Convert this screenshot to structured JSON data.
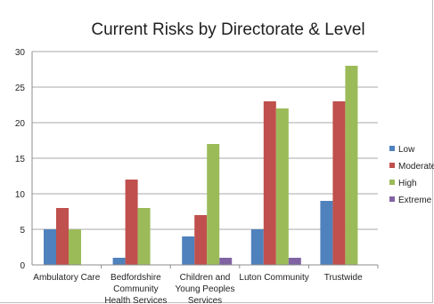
{
  "chart_data": {
    "type": "bar",
    "title": "Current Risks by Directorate & Level",
    "categories": [
      [
        "Ambulatory Care"
      ],
      [
        "Bedfordshire",
        "Community",
        "Health Services"
      ],
      [
        "Children and",
        "Young Peoples",
        "Services"
      ],
      [
        "Luton Community"
      ],
      [
        "Trustwide"
      ]
    ],
    "series": [
      {
        "name": "Low",
        "color": "#4f81bd",
        "values": [
          5,
          1,
          4,
          5,
          9
        ]
      },
      {
        "name": "Moderate",
        "color": "#c0504d",
        "values": [
          8,
          12,
          7,
          23,
          23
        ]
      },
      {
        "name": "High",
        "color": "#9bbb59",
        "values": [
          5,
          8,
          17,
          22,
          28
        ]
      },
      {
        "name": "Extreme",
        "color": "#8064a2",
        "values": [
          0,
          0,
          1,
          1,
          0
        ]
      }
    ],
    "yticks": [
      0,
      5,
      10,
      15,
      20,
      25,
      30
    ],
    "ylim": [
      0,
      30
    ],
    "grid": true,
    "legend_position": "right"
  }
}
